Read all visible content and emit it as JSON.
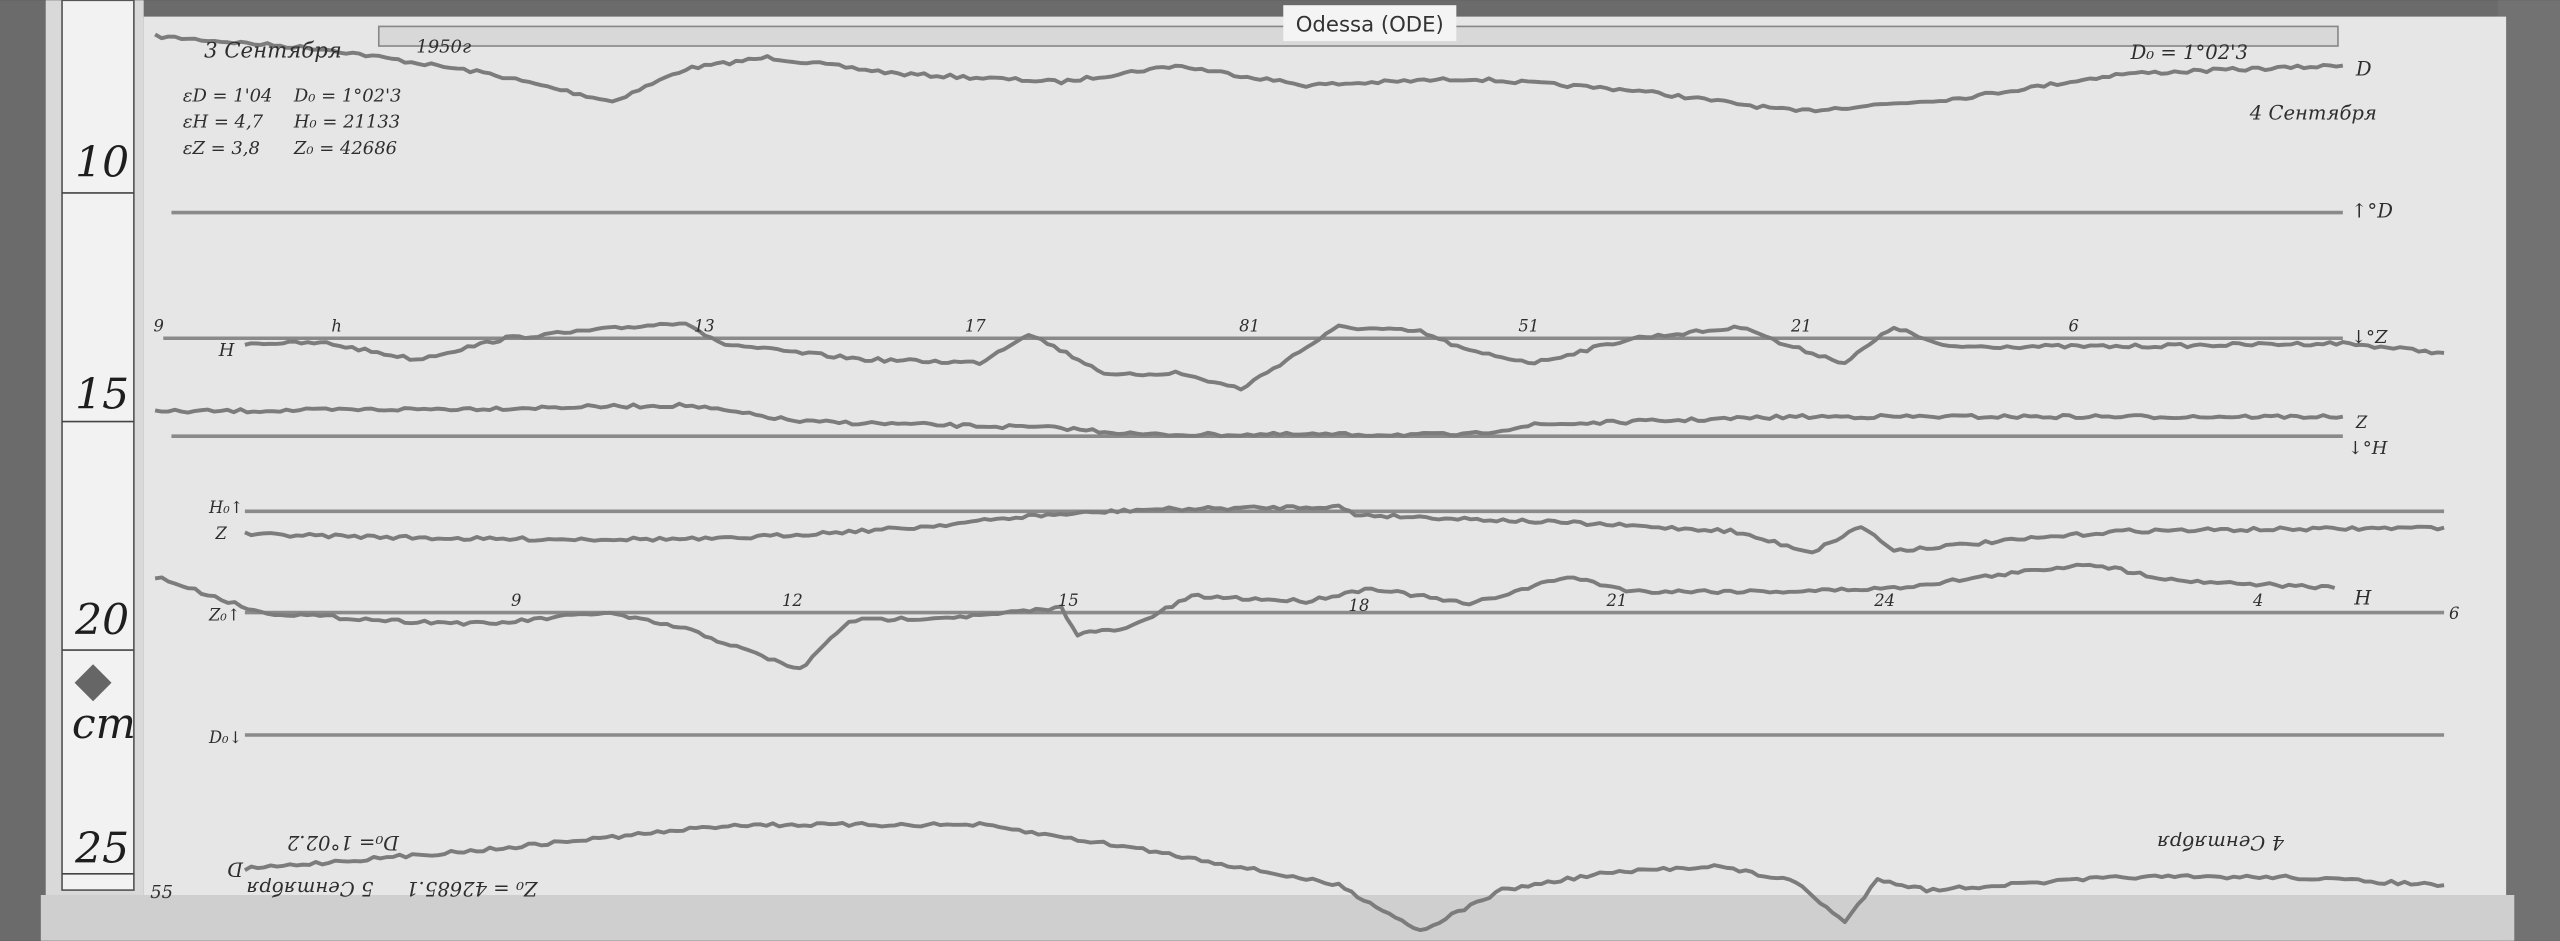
{
  "station_label": "Odessa (ODE)",
  "header": {
    "date_start": "3 Сентября",
    "year": "1950г",
    "scale_values": [
      {
        "eps": "εD = 1'04",
        "base": "D₀ = 1°02'3"
      },
      {
        "eps": "εH = 4,7",
        "base": "H₀ = 21133"
      },
      {
        "eps": "εZ = 3,8",
        "base": "Z₀ = 42686"
      }
    ],
    "top_right_base": "D₀ = 1°02'3",
    "date_end": "4 Сентября"
  },
  "footer_inverted": {
    "base_d": "D₀= 1°02.2",
    "date": "5 Сентября",
    "base_z": "Z₀ = 42685.1",
    "date_right": "4 Сентября",
    "trace_label": "D",
    "corner_mark": "55"
  },
  "trace_labels": {
    "d_top": "D",
    "d_base": "↑°D",
    "z_right_arrow": "↓°Z",
    "h_left": "H",
    "z_right": "Z",
    "h_right_arrow": "↓°H",
    "h0_left": "H₀↑",
    "z_left": "Z",
    "z0_left": "Z₀↑",
    "d0_left": "D₀↓",
    "h_right": "H",
    "end_mark": "6"
  },
  "hour_marks_upper": [
    "9",
    "h",
    "13",
    "17",
    "81",
    "51",
    "21",
    "6"
  ],
  "hour_marks_lower": [
    "9",
    "12",
    "15",
    "18",
    "21",
    "24",
    "4"
  ],
  "ruler": {
    "marks": [
      "10",
      "15",
      "20",
      "25"
    ],
    "unit": "cm"
  }
}
